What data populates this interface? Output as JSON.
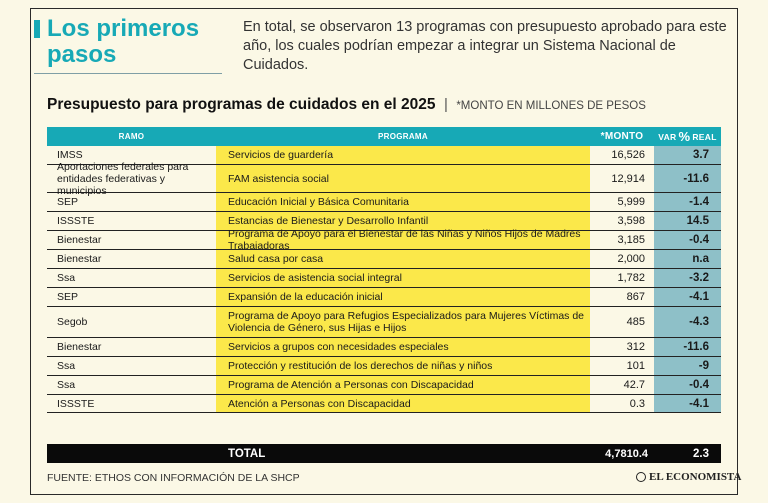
{
  "header": {
    "title": "Los primeros pasos",
    "intro": "En total, se observaron 13 programas con presupuesto aprobado para este año, los cuales podrían empezar a integrar un Sistema Nacional de Cuidados."
  },
  "chart_title": {
    "title": "Presupuesto para programas de cuidados en el 2025",
    "separator": "|",
    "subtitle": "*MONTO EN MILLONES DE PESOS"
  },
  "chart_data": {
    "type": "table",
    "columns": {
      "ramo": "RAMO",
      "programa": "PROGRAMA",
      "monto": "*MONTO",
      "var_prefix": "VAR",
      "var_pct": "%",
      "var_suffix": "REAL"
    },
    "rows": [
      {
        "ramo": "IMSS",
        "programa": "Servicios de guardería",
        "monto": "16,526",
        "var": "3.7"
      },
      {
        "ramo": "Aportaciones federales para entidades federativas y municipios",
        "programa": "FAM asistencia social",
        "monto": "12,914",
        "var": "-11.6"
      },
      {
        "ramo": "SEP",
        "programa": "Educación Inicial y Básica Comunitaria",
        "monto": "5,999",
        "var": "-1.4"
      },
      {
        "ramo": "ISSSTE",
        "programa": "Estancias de Bienestar y Desarrollo Infantil",
        "monto": "3,598",
        "var": "14.5"
      },
      {
        "ramo": "Bienestar",
        "programa": "Programa de Apoyo para el Bienestar de las Niñas y Niños Hijos de Madres Trabajadoras",
        "monto": "3,185",
        "var": "-0.4"
      },
      {
        "ramo": "Bienestar",
        "programa": "Salud casa por casa",
        "monto": "2,000",
        "var": "n.a"
      },
      {
        "ramo": "Ssa",
        "programa": "Servicios de asistencia social integral",
        "monto": "1,782",
        "var": "-3.2"
      },
      {
        "ramo": "SEP",
        "programa": "Expansión de la educación inicial",
        "monto": "867",
        "var": "-4.1"
      },
      {
        "ramo": "Segob",
        "programa": "Programa de Apoyo para Refugios Especializados para Mujeres Víctimas de Violencia de Género, sus Hijas e Hijos",
        "monto": "485",
        "var": "-4.3"
      },
      {
        "ramo": "Bienestar",
        "programa": "Servicios a grupos con necesidades especiales",
        "monto": "312",
        "var": "-11.6"
      },
      {
        "ramo": "Ssa",
        "programa": "Protección y restitución de los derechos de niñas y niños",
        "monto": "101",
        "var": "-9"
      },
      {
        "ramo": "Ssa",
        "programa": "Programa de Atención a Personas con Discapacidad",
        "monto": "42.7",
        "var": "-0.4"
      },
      {
        "ramo": "ISSSTE",
        "programa": "Atención a Personas con Discapacidad",
        "monto": "0.3",
        "var": "-4.1"
      }
    ],
    "total": {
      "label": "TOTAL",
      "monto": "4,7810.4",
      "var": "2.3"
    }
  },
  "footer": {
    "source": "FUENTE: ETHOS CON INFORMACIÓN DE LA SHCP",
    "logo": "EL ECONOMISTA"
  },
  "colors": {
    "accent": "#17a9b6",
    "program_fill": "#fbe84a",
    "var_fill": "#8ec0c8",
    "background": "#fbf8e6",
    "total_fill": "#0a0a0a"
  }
}
